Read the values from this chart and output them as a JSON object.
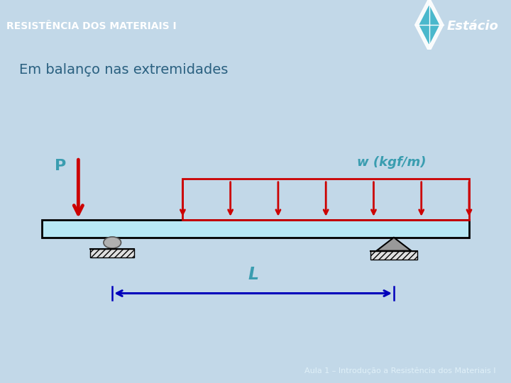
{
  "title_text": "RESISTÊNCIA DOS MATERIAIS I",
  "subtitle_text": "Em balanço nas extremidades",
  "footer_text": "Aula 1 – Introdução a Resistência dos Materiais I",
  "label_P": "P",
  "label_w": "w (kgf/m)",
  "label_L": "L",
  "bg_color_main": "#c2d8e8",
  "bg_color_diagram": "#ffffff",
  "header_bg_top": "#5ab8d4",
  "header_bg_bot": "#3a9cc0",
  "header_text_color": "#ffffff",
  "beam_color": "#b8e8f5",
  "beam_outline": "#000000",
  "load_color": "#cc0000",
  "arrow_color": "#0000bb",
  "w_label_color": "#3a9db0",
  "P_label_color": "#3a9db0",
  "L_label_color": "#3a9db0",
  "footer_bg": "#5ab8d0",
  "footer_text_color": "#e0f0f8",
  "subtitle_color": "#2a6080",
  "diagram_border": "#aaaaaa"
}
